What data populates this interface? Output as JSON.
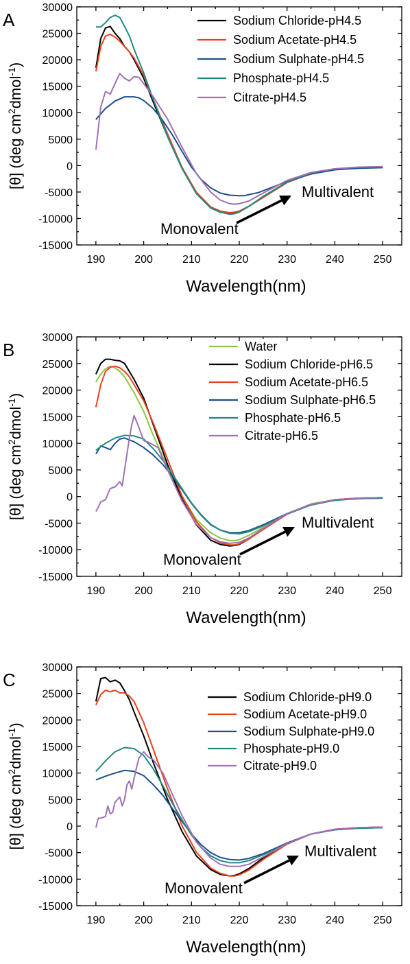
{
  "figure": {
    "panels": [
      "A",
      "B",
      "C"
    ],
    "ylabel_main": "[θ] (deg cm",
    "ylabel_sup1": "2",
    "ylabel_mid": "dmol",
    "ylabel_sup2": "-1",
    "ylabel_end": ")",
    "annotations": {
      "monovalent": "Monovalent",
      "multivalent": "Multivalent"
    }
  },
  "colors": {
    "Water": "#8cc63f",
    "Sodium Chloride": "#000000",
    "Sodium Acetate": "#e8411d",
    "Sodium Sulphate": "#1b4f8a",
    "Phosphate": "#1f8a82",
    "Citrate": "#a070b4"
  },
  "chart_data": [
    {
      "type": "line",
      "panel": "A",
      "xlabel": "Wavelength(nm)",
      "ylabel": "[θ] (deg cm2dmol-1)",
      "xlim": [
        186,
        254
      ],
      "ylim": [
        -15000,
        30000
      ],
      "xticks": [
        190,
        200,
        210,
        220,
        230,
        240,
        250
      ],
      "yticks": [
        -15000,
        -10000,
        -5000,
        0,
        5000,
        10000,
        15000,
        20000,
        25000,
        30000
      ],
      "legend_position": "top-right",
      "series": [
        {
          "name": "Sodium Chloride-pH4.5",
          "color_key": "Sodium Chloride",
          "x": [
            190,
            191,
            192,
            193,
            194,
            195,
            196,
            197,
            198,
            200,
            202,
            205,
            208,
            211,
            214,
            216,
            218,
            219,
            220,
            222,
            225,
            230,
            235,
            240,
            245,
            250
          ],
          "y": [
            18500,
            24000,
            26000,
            26300,
            25000,
            24000,
            22500,
            21500,
            20000,
            16500,
            12000,
            5500,
            -500,
            -5200,
            -8000,
            -8800,
            -9100,
            -9000,
            -8700,
            -7700,
            -6000,
            -3200,
            -1500,
            -700,
            -400,
            -300
          ]
        },
        {
          "name": "Sodium Acetate-pH4.5",
          "color_key": "Sodium Acetate",
          "x": [
            190,
            191,
            192,
            193,
            194,
            195,
            196,
            197,
            198,
            200,
            202,
            205,
            208,
            211,
            214,
            216,
            218,
            219,
            220,
            222,
            225,
            230,
            235,
            240,
            245,
            250
          ],
          "y": [
            17800,
            22500,
            24500,
            24800,
            24300,
            23500,
            22500,
            21500,
            20300,
            17000,
            12500,
            6000,
            -300,
            -5000,
            -7800,
            -8600,
            -8900,
            -8800,
            -8600,
            -7700,
            -6000,
            -3200,
            -1500,
            -700,
            -400,
            -300
          ]
        },
        {
          "name": "Sodium Sulphate-pH4.5",
          "color_key": "Sodium Sulphate",
          "x": [
            190,
            192,
            194,
            196,
            198,
            199,
            200,
            202,
            204,
            206,
            208,
            210,
            212,
            214,
            216,
            218,
            220,
            221,
            222,
            224,
            226,
            230,
            235,
            240,
            245,
            250
          ],
          "y": [
            8700,
            10800,
            12200,
            13000,
            13000,
            12800,
            12300,
            10800,
            8500,
            5800,
            2700,
            -300,
            -2600,
            -4200,
            -5200,
            -5600,
            -5700,
            -5700,
            -5500,
            -5100,
            -4400,
            -3000,
            -1600,
            -800,
            -500,
            -400
          ]
        },
        {
          "name": "Phosphate-pH4.5",
          "color_key": "Phosphate",
          "x": [
            190,
            191,
            192,
            193,
            194,
            195,
            196,
            197,
            198,
            200,
            202,
            205,
            208,
            211,
            214,
            216,
            218,
            219,
            220,
            222,
            225,
            230,
            235,
            240,
            245,
            250
          ],
          "y": [
            26200,
            26200,
            27000,
            28000,
            28400,
            28000,
            26300,
            24500,
            22000,
            17500,
            12500,
            5500,
            -500,
            -5300,
            -8000,
            -8800,
            -9200,
            -9100,
            -8800,
            -7700,
            -5800,
            -3100,
            -1400,
            -600,
            -300,
            -200
          ]
        },
        {
          "name": "Citrate-pH4.5",
          "color_key": "Citrate",
          "x": [
            190,
            191,
            192,
            193,
            194,
            195,
            196,
            197,
            198,
            199,
            200,
            202,
            205,
            208,
            211,
            214,
            216,
            218,
            219,
            220,
            222,
            225,
            230,
            235,
            240,
            245,
            250
          ],
          "y": [
            3000,
            11000,
            14000,
            13500,
            15500,
            17400,
            16500,
            16000,
            16800,
            16700,
            15500,
            13000,
            8800,
            3500,
            -1500,
            -5000,
            -6500,
            -7200,
            -7300,
            -7200,
            -6700,
            -5200,
            -2800,
            -1300,
            -600,
            -300,
            -200
          ]
        }
      ]
    },
    {
      "type": "line",
      "panel": "B",
      "xlabel": "Wavelength(nm)",
      "ylabel": "[θ] (deg cm2dmol-1)",
      "xlim": [
        186,
        254
      ],
      "ylim": [
        -15000,
        30000
      ],
      "xticks": [
        190,
        200,
        210,
        220,
        230,
        240,
        250
      ],
      "yticks": [
        -15000,
        -10000,
        -5000,
        0,
        5000,
        10000,
        15000,
        20000,
        25000,
        30000
      ],
      "legend_position": "top-right",
      "series": [
        {
          "name": "Water",
          "color_key": "Water",
          "x": [
            190,
            191,
            192,
            193,
            194,
            195,
            196,
            197,
            198,
            200,
            202,
            205,
            208,
            211,
            214,
            216,
            218,
            219,
            220,
            222,
            225,
            230,
            235,
            240,
            245,
            250
          ],
          "y": [
            21500,
            23000,
            24000,
            24500,
            24200,
            23500,
            22500,
            21000,
            19500,
            16000,
            11500,
            5500,
            0,
            -4300,
            -6800,
            -7800,
            -8300,
            -8300,
            -8100,
            -7300,
            -5800,
            -3200,
            -1400,
            -600,
            -300,
            -200
          ]
        },
        {
          "name": "Sodium Chloride-pH6.5",
          "color_key": "Sodium Chloride",
          "x": [
            190,
            191,
            192,
            193,
            194,
            195,
            196,
            197,
            198,
            200,
            202,
            205,
            208,
            211,
            214,
            216,
            218,
            219,
            220,
            222,
            225,
            230,
            235,
            240,
            245,
            250
          ],
          "y": [
            23000,
            25000,
            25800,
            25800,
            25600,
            25500,
            25000,
            23500,
            22000,
            18500,
            13500,
            6000,
            -500,
            -5300,
            -8200,
            -9000,
            -9300,
            -9200,
            -9000,
            -8000,
            -6100,
            -3300,
            -1500,
            -600,
            -300,
            -200
          ]
        },
        {
          "name": "Sodium Acetate-pH6.5",
          "color_key": "Sodium Acetate",
          "x": [
            190,
            191,
            192,
            193,
            194,
            195,
            196,
            197,
            198,
            200,
            202,
            205,
            208,
            211,
            214,
            216,
            218,
            219,
            220,
            222,
            225,
            230,
            235,
            240,
            245,
            250
          ],
          "y": [
            16800,
            21000,
            23500,
            24300,
            24500,
            24200,
            23500,
            22500,
            21000,
            18000,
            13800,
            7000,
            100,
            -4700,
            -7700,
            -8700,
            -9100,
            -9100,
            -8900,
            -8000,
            -6200,
            -3300,
            -1500,
            -600,
            -300,
            -200
          ]
        },
        {
          "name": "Sodium Sulphate-pH6.5",
          "color_key": "Sodium Sulphate",
          "x": [
            190,
            191,
            192,
            193,
            194,
            195,
            196,
            198,
            200,
            202,
            204,
            206,
            208,
            210,
            212,
            214,
            216,
            218,
            220,
            222,
            225,
            230,
            235,
            240,
            245,
            250
          ],
          "y": [
            8000,
            9500,
            9200,
            8800,
            10000,
            10800,
            11000,
            10300,
            9200,
            7800,
            6000,
            3800,
            1300,
            -1300,
            -3500,
            -5300,
            -6300,
            -6800,
            -6800,
            -6400,
            -5300,
            -3200,
            -1500,
            -700,
            -400,
            -300
          ]
        },
        {
          "name": "Phosphate-pH6.5",
          "color_key": "Phosphate",
          "x": [
            190,
            192,
            194,
            196,
            198,
            200,
            202,
            204,
            206,
            208,
            210,
            212,
            214,
            216,
            218,
            220,
            222,
            225,
            230,
            235,
            240,
            245,
            250
          ],
          "y": [
            8700,
            10000,
            11000,
            11500,
            11400,
            10800,
            9000,
            6800,
            4200,
            1500,
            -1200,
            -3400,
            -5200,
            -6300,
            -6900,
            -7000,
            -6600,
            -5500,
            -3300,
            -1600,
            -700,
            -400,
            -300
          ]
        },
        {
          "name": "Citrate-pH6.5",
          "color_key": "Citrate",
          "x": [
            190,
            190.5,
            191,
            192,
            193,
            194,
            195,
            195.5,
            196,
            196.5,
            197,
            197.5,
            198,
            199,
            200,
            201,
            202,
            203,
            205,
            208,
            211,
            214,
            216,
            218,
            220,
            222,
            225,
            230,
            235,
            240,
            245,
            250
          ],
          "y": [
            -2800,
            -2000,
            -1000,
            -600,
            1500,
            1800,
            2800,
            2000,
            5000,
            8000,
            11000,
            13500,
            15200,
            13000,
            10500,
            10200,
            9700,
            9200,
            5000,
            -800,
            -5200,
            -7700,
            -8500,
            -8800,
            -8600,
            -7800,
            -6000,
            -3200,
            -1500,
            -600,
            -300,
            -200
          ]
        }
      ]
    },
    {
      "type": "line",
      "panel": "C",
      "xlabel": "Wavelength(nm)",
      "ylabel": "[θ] (deg cm2dmol-1)",
      "xlim": [
        186,
        254
      ],
      "ylim": [
        -15000,
        30000
      ],
      "xticks": [
        190,
        200,
        210,
        220,
        230,
        240,
        250
      ],
      "yticks": [
        -15000,
        -10000,
        -5000,
        0,
        5000,
        10000,
        15000,
        20000,
        25000,
        30000
      ],
      "legend_position": "top-right",
      "series": [
        {
          "name": "Sodium Chloride-pH9.0",
          "color_key": "Sodium Chloride",
          "x": [
            190,
            191,
            192,
            193,
            194,
            195,
            196,
            197,
            198,
            200,
            202,
            205,
            208,
            211,
            214,
            216,
            218,
            219,
            220,
            222,
            225,
            230,
            235,
            240,
            245,
            250
          ],
          "y": [
            23500,
            27800,
            28000,
            27200,
            27500,
            27000,
            25500,
            23800,
            21500,
            17000,
            12000,
            5000,
            -1000,
            -5600,
            -8200,
            -9100,
            -9400,
            -9300,
            -9000,
            -8000,
            -6000,
            -3200,
            -1500,
            -600,
            -300,
            -200
          ]
        },
        {
          "name": "Sodium Acetate-pH9.0",
          "color_key": "Sodium Acetate",
          "x": [
            190,
            191,
            192,
            193,
            194,
            195,
            196,
            197,
            198,
            200,
            202,
            205,
            208,
            211,
            214,
            216,
            218,
            219,
            220,
            222,
            225,
            230,
            235,
            240,
            245,
            250
          ],
          "y": [
            22800,
            24800,
            25600,
            25300,
            25600,
            25100,
            25100,
            24500,
            23500,
            19500,
            14500,
            7000,
            100,
            -4900,
            -7900,
            -8900,
            -9400,
            -9400,
            -9200,
            -8300,
            -6300,
            -3400,
            -1500,
            -600,
            -300,
            -200
          ]
        },
        {
          "name": "Sodium Sulphate-pH9.0",
          "color_key": "Sodium Sulphate",
          "x": [
            190,
            192,
            194,
            196,
            198,
            200,
            202,
            204,
            206,
            208,
            210,
            212,
            214,
            216,
            218,
            220,
            222,
            225,
            230,
            235,
            240,
            245,
            250
          ],
          "y": [
            8700,
            9400,
            10000,
            10500,
            10300,
            9500,
            7800,
            5800,
            3300,
            900,
            -1500,
            -3500,
            -5000,
            -5900,
            -6300,
            -6400,
            -6100,
            -5200,
            -3200,
            -1500,
            -700,
            -400,
            -300
          ]
        },
        {
          "name": "Phosphate-pH9.0",
          "color_key": "Phosphate",
          "x": [
            190,
            192,
            194,
            196,
            198,
            200,
            202,
            204,
            206,
            208,
            210,
            212,
            214,
            216,
            218,
            220,
            222,
            225,
            230,
            235,
            240,
            245,
            250
          ],
          "y": [
            10300,
            12300,
            14000,
            14800,
            14600,
            13300,
            10800,
            7600,
            4300,
            1200,
            -1700,
            -4000,
            -5600,
            -6500,
            -6900,
            -6900,
            -6500,
            -5400,
            -3300,
            -1500,
            -700,
            -400,
            -300
          ]
        },
        {
          "name": "Citrate-pH9.0",
          "color_key": "Citrate",
          "x": [
            190,
            190.5,
            191,
            192,
            192.5,
            193,
            193.5,
            194,
            195,
            195.5,
            196,
            196.5,
            197,
            197.5,
            198,
            198.5,
            199,
            200,
            201,
            202,
            204,
            206,
            208,
            211,
            214,
            216,
            218,
            220,
            222,
            225,
            230,
            235,
            240,
            245,
            250
          ],
          "y": [
            -300,
            1500,
            1500,
            1800,
            3800,
            2300,
            2600,
            4500,
            5500,
            3800,
            5000,
            7800,
            8500,
            7000,
            9000,
            11000,
            12800,
            14000,
            13000,
            12500,
            10000,
            6000,
            2000,
            -3000,
            -6000,
            -7200,
            -7600,
            -7600,
            -7200,
            -5800,
            -3300,
            -1500,
            -600,
            -300,
            -200
          ]
        }
      ]
    }
  ]
}
